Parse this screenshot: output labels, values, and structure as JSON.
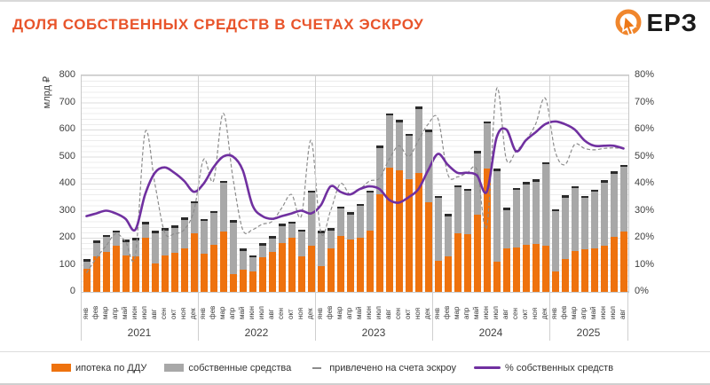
{
  "title": "ДОЛЯ СОБСТВЕННЫХ СРЕДСТВ В СЧЕТАХ ЭСКРОУ",
  "logo": {
    "text": "ЕРЗ"
  },
  "axes": {
    "left_title": "млрд ₽",
    "left_ticks": [
      0,
      100,
      200,
      300,
      400,
      500,
      600,
      700,
      800
    ],
    "left_max": 800,
    "right_ticks": [
      "0%",
      "10%",
      "20%",
      "30%",
      "40%",
      "50%",
      "60%",
      "70%",
      "80%"
    ],
    "right_max": 80
  },
  "legend": {
    "items": [
      {
        "label": "ипотека по ДДУ",
        "type": "bar",
        "color": "#ee720e"
      },
      {
        "label": "собственные средства",
        "type": "bar",
        "color": "#a8a8a8"
      },
      {
        "label": "привлечено на счета эскроу",
        "type": "dash",
        "color": "#8c8c8c"
      },
      {
        "label": "% собственных средств",
        "type": "line",
        "color": "#7030A0"
      }
    ]
  },
  "chart_data": {
    "type": "combo-stacked-bar-line",
    "title": "ДОЛЯ СОБСТВЕННЫХ СРЕДСТВ В СЧЕТАХ ЭСКРОУ",
    "ylabel_left": "млрд ₽",
    "ylim_left": [
      0,
      800
    ],
    "ylim_right_pct": [
      0,
      80
    ],
    "grid": true,
    "legend_position": "bottom",
    "years": [
      {
        "label": "2021",
        "count": 12
      },
      {
        "label": "2022",
        "count": 12
      },
      {
        "label": "2023",
        "count": 12
      },
      {
        "label": "2024",
        "count": 12
      },
      {
        "label": "2025",
        "count": 8
      }
    ],
    "x": [
      "янв",
      "фев",
      "мар",
      "апр",
      "май",
      "июн",
      "июл",
      "авг",
      "сен",
      "окт",
      "ноя",
      "дек",
      "янв",
      "фев",
      "мар",
      "апр",
      "май",
      "июн",
      "июл",
      "авг",
      "сен",
      "окт",
      "ноя",
      "дек",
      "янв",
      "фев",
      "мар",
      "апр",
      "май",
      "июн",
      "июл",
      "авг",
      "сен",
      "окт",
      "ноя",
      "дек",
      "янв",
      "фев",
      "мар",
      "апр",
      "май",
      "июн",
      "июл",
      "авг",
      "сен",
      "окт",
      "ноя",
      "дек",
      "янв",
      "фев",
      "мар",
      "апр",
      "май",
      "июн",
      "июл",
      "авг"
    ],
    "series": [
      {
        "name": "ипотека по ДДУ",
        "axis": "left",
        "kind": "bar-stack",
        "color": "#ee720e",
        "values": [
          85,
          130,
          148,
          170,
          136,
          131,
          200,
          105,
          135,
          145,
          160,
          215,
          140,
          174,
          222,
          65,
          83,
          75,
          127,
          146,
          181,
          201,
          132,
          170,
          95,
          160,
          205,
          195,
          200,
          225,
          360,
          460,
          450,
          415,
          440,
          330,
          115,
          132,
          215,
          213,
          285,
          455,
          110,
          160,
          165,
          175,
          178,
          172,
          75,
          121,
          151,
          157,
          161,
          172,
          203,
          222
        ]
      },
      {
        "name": "собственные средства",
        "axis": "left",
        "kind": "bar-stack",
        "color": "#a8a8a8",
        "values": [
          35,
          60,
          62,
          57,
          56,
          69,
          58,
          120,
          100,
          100,
          115,
          120,
          130,
          126,
          188,
          200,
          77,
          60,
          52,
          59,
          71,
          59,
          98,
          205,
          130,
          75,
          110,
          100,
          125,
          150,
          180,
          200,
          185,
          170,
          245,
          270,
          240,
          155,
          180,
          168,
          235,
          175,
          345,
          150,
          220,
          230,
          237,
          307,
          230,
          235,
          240,
          198,
          217,
          241,
          242,
          248
        ]
      },
      {
        "name": "привлечено на счета эскроу",
        "axis": "left",
        "kind": "dashed-line",
        "color": "#8c8c8c",
        "values": [
          70,
          125,
          170,
          215,
          185,
          135,
          590,
          400,
          220,
          215,
          230,
          300,
          490,
          410,
          660,
          420,
          230,
          230,
          250,
          260,
          310,
          360,
          280,
          560,
          220,
          300,
          400,
          360,
          380,
          410,
          420,
          490,
          540,
          500,
          560,
          620,
          640,
          435,
          425,
          440,
          450,
          240,
          750,
          490,
          520,
          560,
          620,
          715,
          520,
          470,
          545,
          530,
          525,
          530,
          532,
          530
        ]
      },
      {
        "name": "% собственных средств",
        "axis": "right",
        "kind": "line",
        "color": "#7030A0",
        "values": [
          28,
          29,
          30,
          29,
          27,
          23,
          36,
          44,
          46,
          44,
          41,
          37,
          40,
          46,
          50,
          50,
          45,
          32,
          28,
          27,
          28,
          29,
          30,
          29,
          32,
          39,
          37,
          36,
          38,
          39,
          38,
          34,
          33,
          35,
          38,
          45,
          51,
          47,
          44,
          44,
          43,
          37,
          57,
          60,
          52,
          56,
          59,
          62,
          63,
          62,
          60,
          56,
          54,
          54,
          54,
          53
        ]
      }
    ]
  }
}
